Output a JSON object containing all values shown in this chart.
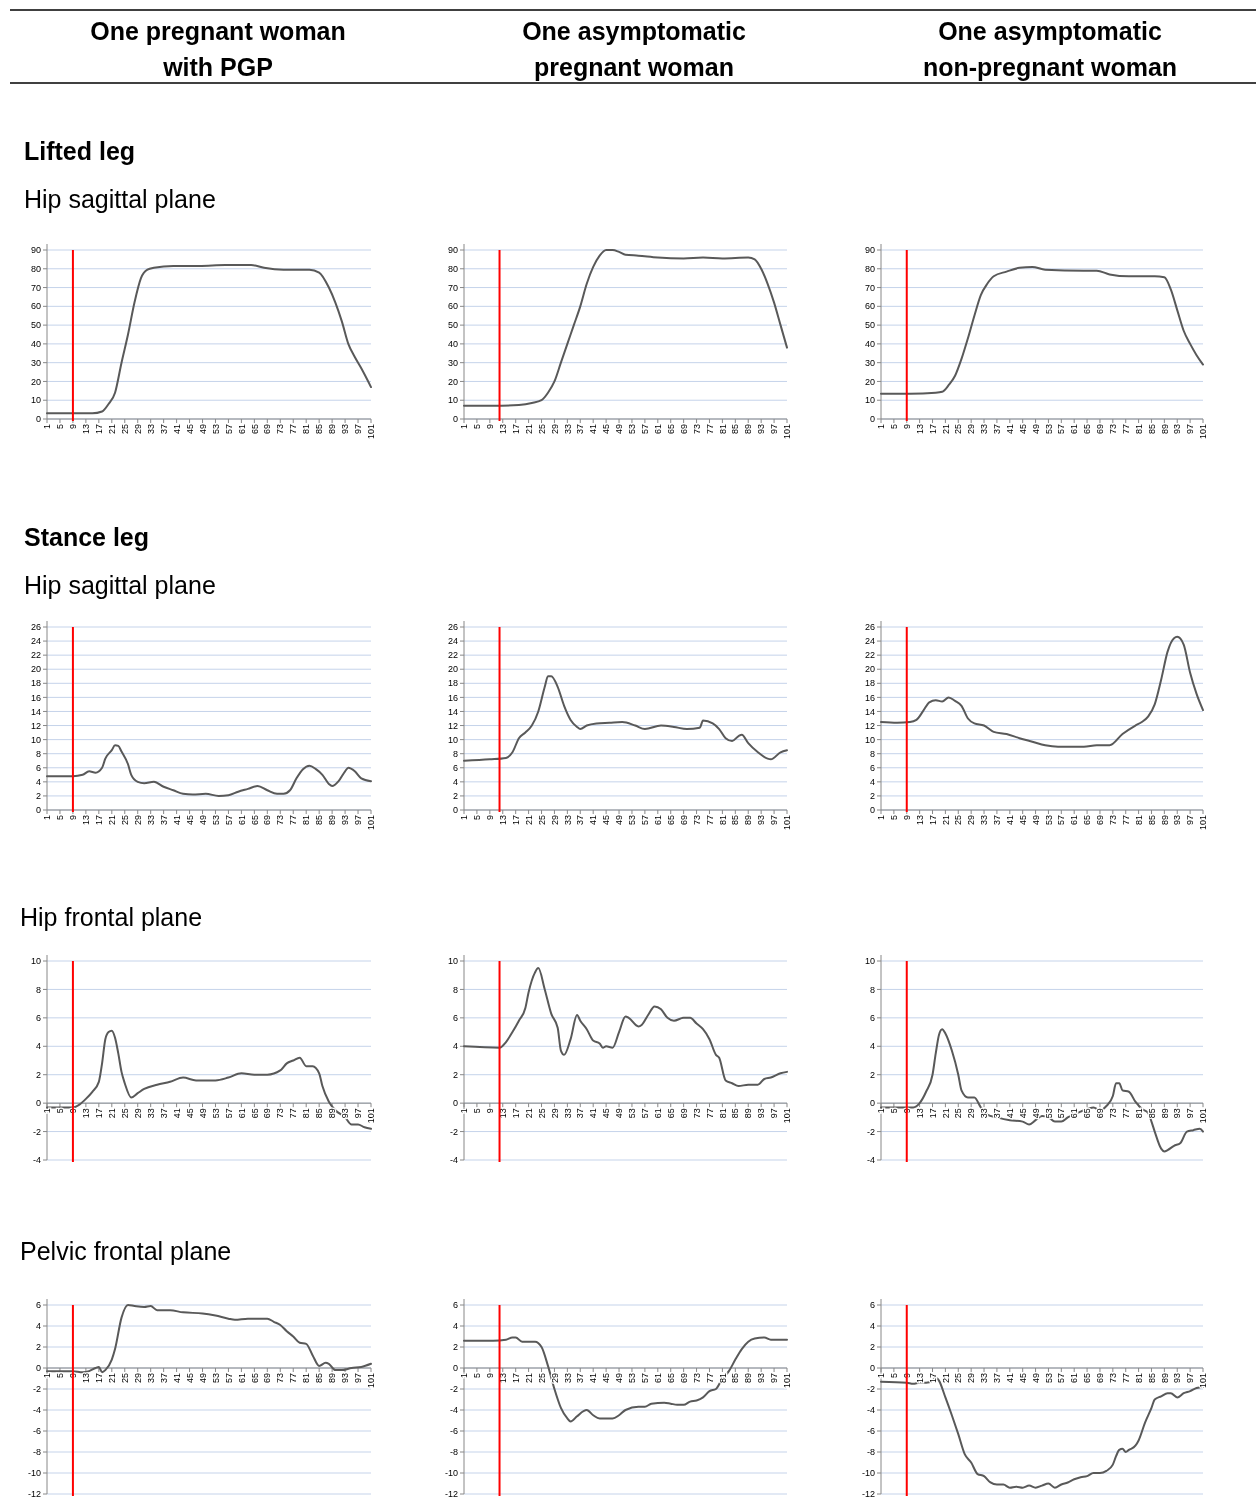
{
  "chart_data": [
    {
      "type": "line",
      "title": "One pregnant woman with PGP",
      "annotations": [
        "Lifted leg",
        "Hip sagittal plane"
      ],
      "xlim": [
        1,
        101
      ],
      "xticks": [
        1,
        5,
        9,
        13,
        17,
        21,
        25,
        29,
        33,
        37,
        41,
        45,
        49,
        53,
        57,
        61,
        65,
        69,
        73,
        77,
        81,
        85,
        89,
        93,
        97,
        101
      ],
      "ylim": [
        0,
        90
      ],
      "yticks": [
        0,
        10,
        20,
        30,
        40,
        50,
        60,
        70,
        80,
        90
      ],
      "grid": "y",
      "ref_lines": [
        {
          "axis": "x",
          "value": 9,
          "color": "#ff0000"
        }
      ],
      "series": [
        {
          "color": "#595959",
          "x": [
            1,
            9,
            15,
            18,
            20,
            22,
            24,
            26,
            28,
            30,
            32,
            34,
            40,
            48,
            56,
            64,
            68,
            74,
            82,
            85,
            88,
            90,
            92,
            94,
            96,
            98,
            101
          ],
          "values": [
            3,
            3,
            3,
            4,
            8,
            14,
            30,
            45,
            62,
            75,
            79.5,
            80.5,
            81.5,
            81.5,
            82,
            82,
            80.5,
            79.5,
            79.5,
            78,
            70,
            62,
            52,
            40,
            33,
            27,
            17
          ]
        }
      ]
    },
    {
      "type": "line",
      "title": "One asymptomatic pregnant woman",
      "xlim": [
        1,
        101
      ],
      "xticks": [
        1,
        5,
        9,
        13,
        17,
        21,
        25,
        29,
        33,
        37,
        41,
        45,
        49,
        53,
        57,
        61,
        65,
        69,
        73,
        77,
        81,
        85,
        89,
        93,
        97,
        101
      ],
      "ylim": [
        0,
        90
      ],
      "yticks": [
        0,
        10,
        20,
        30,
        40,
        50,
        60,
        70,
        80,
        90
      ],
      "grid": "y",
      "ref_lines": [
        {
          "axis": "x",
          "value": 12,
          "color": "#ff0000"
        }
      ],
      "series": [
        {
          "color": "#595959",
          "x": [
            1,
            10,
            18,
            22,
            25,
            27,
            29,
            31,
            33,
            35,
            37,
            39,
            41,
            43,
            45,
            47,
            49,
            51,
            55,
            61,
            69,
            75,
            81,
            89,
            91,
            93,
            95,
            97,
            99,
            101
          ],
          "values": [
            7,
            7,
            7.5,
            8.5,
            10,
            14,
            20,
            30,
            40,
            50,
            60,
            72,
            81,
            87,
            90,
            90,
            89,
            87.5,
            87,
            86,
            85.5,
            86,
            85.5,
            86,
            85,
            80,
            72,
            62,
            50,
            38
          ]
        }
      ]
    },
    {
      "type": "line",
      "title": "One asymptomatic non-pregnant woman",
      "xlim": [
        1,
        101
      ],
      "xticks": [
        1,
        5,
        9,
        13,
        17,
        21,
        25,
        29,
        33,
        37,
        41,
        45,
        49,
        53,
        57,
        61,
        65,
        69,
        73,
        77,
        81,
        85,
        89,
        93,
        97,
        101
      ],
      "ylim": [
        0,
        90
      ],
      "yticks": [
        0,
        10,
        20,
        30,
        40,
        50,
        60,
        70,
        80,
        90
      ],
      "grid": "y",
      "ref_lines": [
        {
          "axis": "x",
          "value": 9,
          "color": "#ff0000"
        }
      ],
      "series": [
        {
          "color": "#595959",
          "x": [
            1,
            10,
            18,
            20,
            22,
            24,
            26,
            28,
            30,
            32,
            34,
            36,
            40,
            44,
            48,
            52,
            64,
            68,
            72,
            78,
            86,
            89,
            91,
            93,
            95,
            97,
            99,
            101
          ],
          "values": [
            13.5,
            13.5,
            14,
            14.5,
            18,
            23,
            32,
            43,
            55,
            66,
            72,
            76,
            78.5,
            80.5,
            81,
            79.5,
            79,
            79,
            77,
            76,
            76,
            75.5,
            69,
            58,
            47,
            40,
            34,
            29
          ]
        }
      ]
    },
    {
      "type": "line",
      "annotations": [
        "Stance leg",
        "Hip sagittal plane"
      ],
      "xlim": [
        1,
        101
      ],
      "xticks": [
        1,
        5,
        9,
        13,
        17,
        21,
        25,
        29,
        33,
        37,
        41,
        45,
        49,
        53,
        57,
        61,
        65,
        69,
        73,
        77,
        81,
        85,
        89,
        93,
        97,
        101
      ],
      "ylim": [
        0,
        26
      ],
      "yticks": [
        0,
        2,
        4,
        6,
        8,
        10,
        12,
        14,
        16,
        18,
        20,
        22,
        24,
        26
      ],
      "grid": "y",
      "ref_lines": [
        {
          "axis": "x",
          "value": 9,
          "color": "#ff0000"
        }
      ],
      "series": [
        {
          "color": "#595959",
          "x": [
            1,
            9,
            12,
            14,
            16,
            18,
            19,
            21,
            22,
            23,
            24,
            26,
            27,
            29,
            31,
            34,
            37,
            40,
            43,
            46,
            50,
            54,
            57,
            60,
            63,
            66,
            69,
            72,
            74,
            76,
            78,
            80,
            82,
            84,
            86,
            88,
            89,
            91,
            93,
            94,
            96,
            98,
            101
          ],
          "values": [
            4.8,
            4.8,
            5.0,
            5.5,
            5.3,
            6.0,
            7.3,
            8.5,
            9.2,
            9.1,
            8.3,
            6.5,
            5.0,
            4.0,
            3.8,
            4.0,
            3.3,
            2.8,
            2.3,
            2.2,
            2.3,
            2.0,
            2.1,
            2.6,
            3.0,
            3.4,
            2.8,
            2.3,
            2.3,
            2.8,
            4.5,
            5.8,
            6.3,
            5.8,
            5.0,
            3.7,
            3.4,
            4.1,
            5.5,
            6.0,
            5.5,
            4.5,
            4.1
          ]
        }
      ]
    },
    {
      "type": "line",
      "xlim": [
        1,
        101
      ],
      "xticks": [
        1,
        5,
        9,
        13,
        17,
        21,
        25,
        29,
        33,
        37,
        41,
        45,
        49,
        53,
        57,
        61,
        65,
        69,
        73,
        77,
        81,
        85,
        89,
        93,
        97,
        101
      ],
      "ylim": [
        0,
        26
      ],
      "yticks": [
        0,
        2,
        4,
        6,
        8,
        10,
        12,
        14,
        16,
        18,
        20,
        22,
        24,
        26
      ],
      "grid": "y",
      "ref_lines": [
        {
          "axis": "x",
          "value": 12,
          "color": "#ff0000"
        }
      ],
      "series": [
        {
          "color": "#595959",
          "x": [
            1,
            9,
            14,
            16,
            18,
            20,
            22,
            24,
            26,
            27,
            28,
            30,
            32,
            34,
            36,
            37,
            39,
            42,
            46,
            50,
            54,
            57,
            62,
            66,
            70,
            74,
            75,
            78,
            80,
            82,
            84,
            86,
            87,
            89,
            92,
            95,
            96,
            99,
            101
          ],
          "values": [
            7.0,
            7.2,
            7.4,
            8.2,
            10.2,
            11.0,
            12.0,
            14,
            17.5,
            19,
            19.0,
            17.5,
            14.8,
            12.8,
            11.8,
            11.5,
            12.0,
            12.3,
            12.4,
            12.5,
            12.0,
            11.5,
            12.0,
            11.8,
            11.5,
            11.7,
            12.7,
            12.3,
            11.5,
            10.2,
            9.8,
            10.5,
            10.7,
            9.5,
            8.2,
            7.3,
            7.2,
            8.2,
            8.5
          ]
        }
      ]
    },
    {
      "type": "line",
      "xlim": [
        1,
        101
      ],
      "xticks": [
        1,
        5,
        9,
        13,
        17,
        21,
        25,
        29,
        33,
        37,
        41,
        45,
        49,
        53,
        57,
        61,
        65,
        69,
        73,
        77,
        81,
        85,
        89,
        93,
        97,
        101
      ],
      "ylim": [
        0,
        26
      ],
      "yticks": [
        0,
        2,
        4,
        6,
        8,
        10,
        12,
        14,
        16,
        18,
        20,
        22,
        24,
        26
      ],
      "grid": "y",
      "ref_lines": [
        {
          "axis": "x",
          "value": 9,
          "color": "#ff0000"
        }
      ],
      "series": [
        {
          "color": "#595959",
          "x": [
            1,
            6,
            10,
            12,
            14,
            16,
            18,
            20,
            22,
            24,
            26,
            28,
            30,
            33,
            36,
            40,
            44,
            48,
            52,
            56,
            60,
            64,
            68,
            72,
            76,
            80,
            82,
            84,
            86,
            88,
            90,
            92,
            93,
            95,
            97,
            99,
            101
          ],
          "values": [
            12.5,
            12.4,
            12.5,
            12.8,
            14,
            15.3,
            15.6,
            15.4,
            16.0,
            15.5,
            14.8,
            13.0,
            12.3,
            12.0,
            11.1,
            10.8,
            10.2,
            9.7,
            9.2,
            9.0,
            9.0,
            9.0,
            9.2,
            9.2,
            10.8,
            12.0,
            12.5,
            13.3,
            15.0,
            18.5,
            22.5,
            24.4,
            24.6,
            23.5,
            19.5,
            16.5,
            14.2
          ]
        }
      ]
    },
    {
      "type": "line",
      "annotations": [
        "Hip frontal plane"
      ],
      "xlim": [
        1,
        101
      ],
      "xticks": [
        1,
        5,
        9,
        13,
        17,
        21,
        25,
        29,
        33,
        37,
        41,
        45,
        49,
        53,
        57,
        61,
        65,
        69,
        73,
        77,
        81,
        85,
        89,
        93,
        97,
        101
      ],
      "ylim": [
        -4,
        10
      ],
      "yticks": [
        -4,
        -2,
        0,
        2,
        4,
        6,
        8,
        10
      ],
      "grid": "y",
      "ref_lines": [
        {
          "axis": "x",
          "value": 9,
          "color": "#ff0000"
        }
      ],
      "series": [
        {
          "color": "#595959",
          "x": [
            1,
            9,
            11,
            13,
            15,
            17,
            18,
            19,
            20,
            21,
            22,
            23,
            24,
            25,
            27,
            29,
            31,
            35,
            39,
            43,
            47,
            53,
            57,
            61,
            65,
            69,
            73,
            75,
            77,
            79,
            81,
            83,
            85,
            86,
            88,
            90,
            93,
            95,
            97,
            99,
            101
          ],
          "values": [
            -0.3,
            -0.3,
            -0.1,
            0.3,
            0.8,
            1.5,
            2.8,
            4.5,
            5.0,
            5.1,
            4.6,
            3.5,
            2.2,
            1.4,
            0.4,
            0.7,
            1.0,
            1.3,
            1.5,
            1.8,
            1.6,
            1.6,
            1.8,
            2.1,
            2.0,
            2.0,
            2.3,
            2.8,
            3.0,
            3.2,
            2.6,
            2.6,
            2.1,
            1.2,
            0.1,
            -0.5,
            -1.0,
            -1.5,
            -1.5,
            -1.7,
            -1.8
          ]
        }
      ]
    },
    {
      "type": "line",
      "xlim": [
        1,
        101
      ],
      "xticks": [
        1,
        5,
        9,
        13,
        17,
        21,
        25,
        29,
        33,
        37,
        41,
        45,
        49,
        53,
        57,
        61,
        65,
        69,
        73,
        77,
        81,
        85,
        89,
        93,
        97,
        101
      ],
      "ylim": [
        -4,
        10
      ],
      "yticks": [
        -4,
        -2,
        0,
        2,
        4,
        6,
        8,
        10
      ],
      "grid": "y",
      "ref_lines": [
        {
          "axis": "x",
          "value": 12,
          "color": "#ff0000"
        }
      ],
      "series": [
        {
          "color": "#595959",
          "x": [
            1,
            12,
            14,
            16,
            18,
            20,
            21,
            23,
            24,
            26,
            28,
            30,
            31,
            32,
            34,
            36,
            37,
            39,
            41,
            43,
            44,
            45,
            47,
            49,
            51,
            52,
            55,
            56,
            58,
            60,
            62,
            64,
            66,
            69,
            71,
            73,
            75,
            77,
            79,
            80,
            82,
            84,
            86,
            89,
            92,
            94,
            96,
            99,
            101
          ],
          "values": [
            4.0,
            3.9,
            4.3,
            5.0,
            5.8,
            6.7,
            7.8,
            9.2,
            9.5,
            8.0,
            6.3,
            5.3,
            3.7,
            3.4,
            4.5,
            6.2,
            5.8,
            5.2,
            4.4,
            4.2,
            3.9,
            4.0,
            3.9,
            5.0,
            6.1,
            6.0,
            5.4,
            5.5,
            6.2,
            6.8,
            6.6,
            6.0,
            5.8,
            6.0,
            6.0,
            5.6,
            5.2,
            4.5,
            3.4,
            3.2,
            1.6,
            1.4,
            1.2,
            1.3,
            1.3,
            1.7,
            1.8,
            2.1,
            2.2
          ]
        }
      ]
    },
    {
      "type": "line",
      "xlim": [
        1,
        101
      ],
      "xticks": [
        1,
        5,
        9,
        13,
        17,
        21,
        25,
        29,
        33,
        37,
        41,
        45,
        49,
        53,
        57,
        61,
        65,
        69,
        73,
        77,
        81,
        85,
        89,
        93,
        97,
        101
      ],
      "ylim": [
        -4,
        10
      ],
      "yticks": [
        -4,
        -2,
        0,
        2,
        4,
        6,
        8,
        10
      ],
      "grid": "y",
      "ref_lines": [
        {
          "axis": "x",
          "value": 9,
          "color": "#ff0000"
        }
      ],
      "series": [
        {
          "color": "#595959",
          "x": [
            1,
            11,
            13,
            15,
            17,
            18,
            19,
            20,
            21,
            23,
            25,
            26,
            28,
            30,
            32,
            34,
            37,
            41,
            45,
            47,
            49,
            51,
            53,
            55,
            57,
            59,
            63,
            67,
            69,
            71,
            73,
            74,
            75,
            76,
            78,
            80,
            82,
            84,
            85,
            86,
            88,
            89,
            90,
            92,
            94,
            96,
            98,
            100,
            101
          ],
          "values": [
            -0.3,
            -0.3,
            0.0,
            0.8,
            2.0,
            3.5,
            4.8,
            5.2,
            4.9,
            3.7,
            2.0,
            0.9,
            0.4,
            0.4,
            -0.3,
            -0.8,
            -1.0,
            -1.2,
            -1.3,
            -1.5,
            -1.2,
            -0.9,
            -1.0,
            -1.3,
            -1.3,
            -1.0,
            -0.6,
            -0.3,
            -0.5,
            -0.2,
            0.5,
            1.4,
            1.4,
            0.9,
            0.8,
            0.1,
            -0.4,
            -0.7,
            -1.3,
            -2.0,
            -3.2,
            -3.4,
            -3.3,
            -3.0,
            -2.8,
            -2.0,
            -1.9,
            -1.8,
            -2.0
          ]
        }
      ]
    },
    {
      "type": "line",
      "annotations": [
        "Pelvic frontal plane"
      ],
      "xlim": [
        1,
        101
      ],
      "xticks": [
        1,
        5,
        9,
        13,
        17,
        21,
        25,
        29,
        33,
        37,
        41,
        45,
        49,
        53,
        57,
        61,
        65,
        69,
        73,
        77,
        81,
        85,
        89,
        93,
        97,
        101
      ],
      "ylim": [
        -12,
        6
      ],
      "yticks": [
        -12,
        -10,
        -8,
        -6,
        -4,
        -2,
        0,
        2,
        4,
        6
      ],
      "grid": "y",
      "ref_lines": [
        {
          "axis": "x",
          "value": 9,
          "color": "#ff0000"
        }
      ],
      "series": [
        {
          "color": "#595959",
          "x": [
            1,
            9,
            12,
            14,
            16,
            17,
            18,
            19,
            21,
            22,
            24,
            26,
            28,
            31,
            33,
            35,
            39,
            43,
            49,
            53,
            57,
            59,
            63,
            67,
            69,
            71,
            73,
            75,
            77,
            79,
            81,
            83,
            85,
            87,
            88,
            90,
            92,
            95,
            98,
            101
          ],
          "values": [
            -0.3,
            -0.3,
            -0.4,
            -0.3,
            0.0,
            0.1,
            -0.4,
            -0.2,
            0.8,
            1.8,
            4.8,
            6.0,
            5.9,
            5.8,
            5.9,
            5.5,
            5.5,
            5.3,
            5.2,
            5.0,
            4.7,
            4.6,
            4.7,
            4.7,
            4.7,
            4.4,
            4.1,
            3.5,
            3.0,
            2.4,
            2.3,
            1.2,
            0.2,
            0.5,
            0.4,
            -0.2,
            -0.2,
            0.0,
            0.1,
            0.4
          ]
        }
      ]
    },
    {
      "type": "line",
      "xlim": [
        1,
        101
      ],
      "xticks": [
        1,
        5,
        9,
        13,
        17,
        21,
        25,
        29,
        33,
        37,
        41,
        45,
        49,
        53,
        57,
        61,
        65,
        69,
        73,
        77,
        81,
        85,
        89,
        93,
        97,
        101
      ],
      "ylim": [
        -12,
        6
      ],
      "yticks": [
        -12,
        -10,
        -8,
        -6,
        -4,
        -2,
        0,
        2,
        4,
        6
      ],
      "grid": "y",
      "ref_lines": [
        {
          "axis": "x",
          "value": 12,
          "color": "#ff0000"
        }
      ],
      "series": [
        {
          "color": "#595959",
          "x": [
            1,
            10,
            14,
            16,
            17,
            19,
            21,
            23,
            25,
            27,
            29,
            31,
            33,
            34,
            36,
            38,
            39,
            41,
            43,
            47,
            49,
            51,
            55,
            57,
            59,
            63,
            65,
            67,
            69,
            71,
            73,
            75,
            77,
            79,
            81,
            83,
            85,
            87,
            89,
            91,
            94,
            96,
            99,
            101
          ],
          "values": [
            2.6,
            2.6,
            2.7,
            2.9,
            2.9,
            2.5,
            2.5,
            2.5,
            2.0,
            0.2,
            -2.0,
            -3.8,
            -4.8,
            -5.1,
            -4.6,
            -4.1,
            -4.0,
            -4.5,
            -4.8,
            -4.8,
            -4.5,
            -4.0,
            -3.7,
            -3.7,
            -3.4,
            -3.3,
            -3.4,
            -3.5,
            -3.5,
            -3.2,
            -3.1,
            -2.8,
            -2.2,
            -2.0,
            -1.0,
            -0.3,
            0.8,
            1.8,
            2.5,
            2.8,
            2.9,
            2.7,
            2.7,
            2.7
          ]
        }
      ]
    },
    {
      "type": "line",
      "xlim": [
        1,
        101
      ],
      "xticks": [
        1,
        5,
        9,
        13,
        17,
        21,
        25,
        29,
        33,
        37,
        41,
        45,
        49,
        53,
        57,
        61,
        65,
        69,
        73,
        77,
        81,
        85,
        89,
        93,
        97,
        101
      ],
      "ylim": [
        -12,
        6
      ],
      "yticks": [
        -12,
        -10,
        -8,
        -6,
        -4,
        -2,
        0,
        2,
        4,
        6
      ],
      "grid": "y",
      "ref_lines": [
        {
          "axis": "x",
          "value": 9,
          "color": "#ff0000"
        }
      ],
      "series": [
        {
          "color": "#595959",
          "x": [
            1,
            9,
            11,
            13,
            15,
            17,
            18,
            19,
            21,
            23,
            25,
            27,
            29,
            31,
            33,
            35,
            37,
            39,
            41,
            43,
            45,
            47,
            49,
            51,
            53,
            55,
            57,
            59,
            61,
            63,
            65,
            67,
            69,
            71,
            73,
            74,
            75,
            76,
            77,
            78,
            80,
            81,
            83,
            85,
            86,
            88,
            90,
            91,
            93,
            95,
            97,
            99,
            101
          ],
          "values": [
            -1.3,
            -1.4,
            -1.5,
            -1.4,
            -1.4,
            -1.2,
            -0.9,
            -1.2,
            -2.8,
            -4.5,
            -6.3,
            -8.2,
            -9.0,
            -10.1,
            -10.3,
            -10.9,
            -11.1,
            -11.1,
            -11.4,
            -11.3,
            -11.4,
            -11.2,
            -11.4,
            -11.2,
            -11.0,
            -11.4,
            -11.1,
            -10.9,
            -10.6,
            -10.4,
            -10.3,
            -10.0,
            -10.0,
            -9.8,
            -9.2,
            -8.4,
            -7.8,
            -7.7,
            -8.0,
            -7.8,
            -7.4,
            -6.9,
            -5.2,
            -3.8,
            -3.0,
            -2.7,
            -2.4,
            -2.4,
            -2.8,
            -2.4,
            -2.2,
            -1.9,
            -1.8
          ]
        }
      ]
    }
  ]
}
